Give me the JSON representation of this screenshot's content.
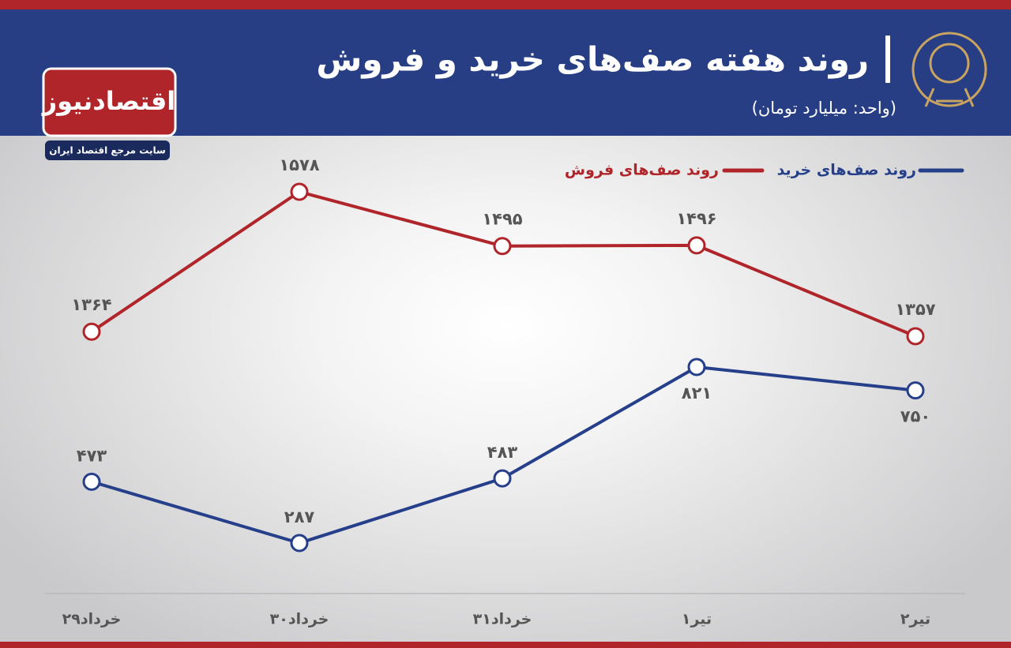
{
  "logo": {
    "name": "اقتصادنیوز",
    "tagline": "سایت مرجع اقتصاد ایران"
  },
  "chart_data": {
    "type": "line",
    "title": "روند هفته صف‌های خرید و فروش",
    "subtitle": "(واحد: میلیارد تومان)",
    "categories": [
      "۲۹خرداد",
      "۳۰خرداد",
      "۳۱خرداد",
      "۱تیر",
      "۲تیر"
    ],
    "series": [
      {
        "name": "روند صف‌های فروش",
        "color": "#b0252a",
        "values": [
          1364,
          1578,
          1495,
          1496,
          1357
        ],
        "value_labels": [
          "۱۳۶۴",
          "۱۵۷۸",
          "۱۴۹۵",
          "۱۴۹۶",
          "۱۳۵۷"
        ]
      },
      {
        "name": "روند صف‌های خرید",
        "color": "#263f8a",
        "values": [
          473,
          287,
          483,
          821,
          750
        ],
        "value_labels": [
          "۴۷۳",
          "۲۸۷",
          "۴۸۳",
          "۸۲۱",
          "۷۵۰"
        ]
      }
    ]
  }
}
